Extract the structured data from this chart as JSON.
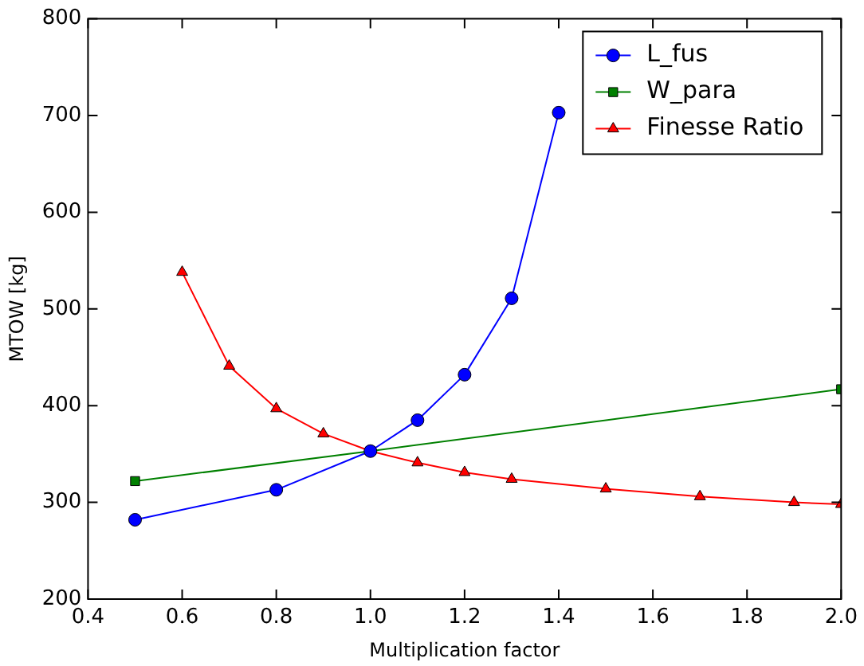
{
  "chart_data": {
    "type": "line",
    "xlabel": "Multiplication factor",
    "ylabel": "MTOW [kg]",
    "xlim": [
      0.4,
      2.0
    ],
    "xticks": [
      0.4,
      0.6,
      0.8,
      {
        "value": 1,
        "label": "1.0"
      },
      1.2,
      1.4,
      1.6,
      1.8,
      {
        "value": 2,
        "label": "2.0"
      }
    ],
    "ylim": [
      200,
      800
    ],
    "yticks": [
      200,
      300,
      400,
      500,
      600,
      700,
      800
    ],
    "grid": false,
    "legend": "top right",
    "series": [
      {
        "name": "L_fus",
        "color": "#0000ff",
        "marker": "circle",
        "x": [
          0.5,
          0.8,
          1.0,
          1.1,
          1.2,
          1.3,
          1.4
        ],
        "values": [
          282,
          313,
          353,
          385,
          432,
          511,
          703
        ]
      },
      {
        "name": "W_para",
        "color": "#008000",
        "marker": "square",
        "x": [
          0.5,
          1.0,
          2.0
        ],
        "values": [
          322,
          353,
          417
        ]
      },
      {
        "name": "Finesse Ratio",
        "color": "#ff0000",
        "marker": "triangle",
        "x": [
          0.6,
          0.7,
          0.8,
          0.9,
          1.0,
          1.1,
          1.2,
          1.3,
          1.5,
          1.7,
          1.9,
          2.0
        ],
        "values": [
          538,
          441,
          397,
          371,
          353,
          341,
          331,
          324,
          314,
          306,
          300,
          298
        ]
      }
    ]
  }
}
